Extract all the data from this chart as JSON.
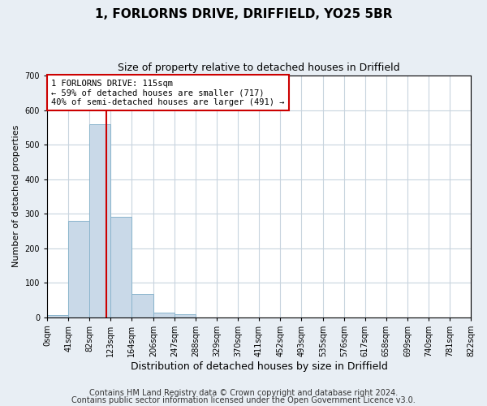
{
  "title": "1, FORLORNS DRIVE, DRIFFIELD, YO25 5BR",
  "subtitle": "Size of property relative to detached houses in Driffield",
  "xlabel": "Distribution of detached houses by size in Driffield",
  "ylabel": "Number of detached properties",
  "bin_edges": [
    0,
    41,
    82,
    123,
    164,
    206,
    247,
    288,
    329,
    370,
    411,
    452,
    493,
    535,
    576,
    617,
    658,
    699,
    740,
    781,
    822
  ],
  "bin_labels": [
    "0sqm",
    "41sqm",
    "82sqm",
    "123sqm",
    "164sqm",
    "206sqm",
    "247sqm",
    "288sqm",
    "329sqm",
    "370sqm",
    "411sqm",
    "452sqm",
    "493sqm",
    "535sqm",
    "576sqm",
    "617sqm",
    "658sqm",
    "699sqm",
    "740sqm",
    "781sqm",
    "822sqm"
  ],
  "counts": [
    5,
    280,
    560,
    290,
    68,
    13,
    8,
    0,
    0,
    0,
    0,
    0,
    0,
    0,
    0,
    0,
    0,
    0,
    0,
    0
  ],
  "bar_color": "#c9d9e8",
  "bar_edge_color": "#8ab4cc",
  "property_value": 115,
  "vline_color": "#cc0000",
  "annotation_line1": "1 FORLORNS DRIVE: 115sqm",
  "annotation_line2": "← 59% of detached houses are smaller (717)",
  "annotation_line3": "40% of semi-detached houses are larger (491) →",
  "annotation_box_facecolor": "#ffffff",
  "annotation_box_edgecolor": "#cc0000",
  "ylim": [
    0,
    700
  ],
  "yticks": [
    0,
    100,
    200,
    300,
    400,
    500,
    600,
    700
  ],
  "footer_line1": "Contains HM Land Registry data © Crown copyright and database right 2024.",
  "footer_line2": "Contains public sector information licensed under the Open Government Licence v3.0.",
  "fig_bg_color": "#e8eef4",
  "plot_bg_color": "#ffffff",
  "grid_color": "#c8d4de",
  "title_fontsize": 11,
  "subtitle_fontsize": 9,
  "tick_fontsize": 7,
  "ylabel_fontsize": 8,
  "xlabel_fontsize": 9,
  "footer_fontsize": 7
}
